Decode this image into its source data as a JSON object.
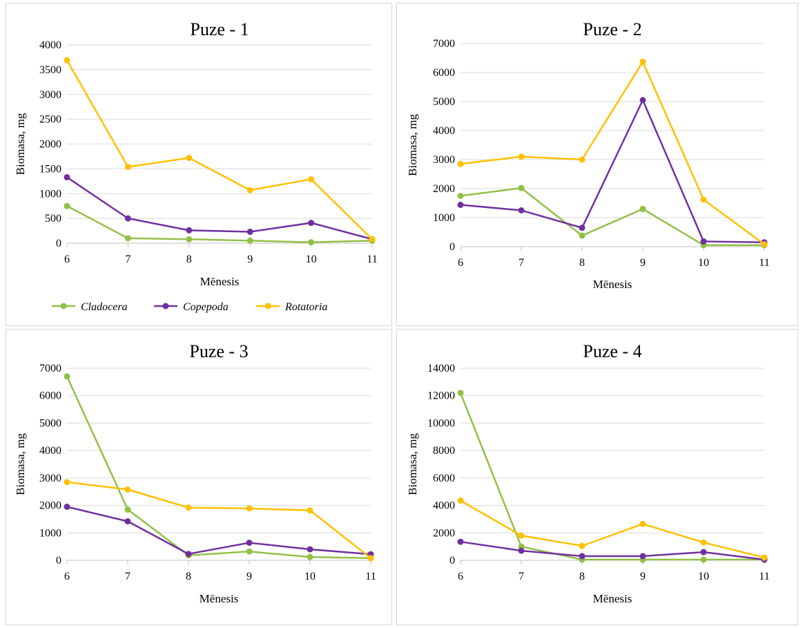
{
  "colors": {
    "cladocera": "#92c047",
    "copepoda": "#7030a0",
    "rotatoria": "#ffc000",
    "grid": "#d9d9d9",
    "axis": "#bfbfbf"
  },
  "legend": {
    "placement": "bottom",
    "items": [
      "Cladocera",
      "Copepoda",
      "Rotatoria"
    ]
  },
  "chart_data": [
    {
      "type": "line",
      "title": "Puze - 1",
      "xlabel": "Mēnesis",
      "ylabel": "Biomasa, mg",
      "x": [
        6,
        7,
        8,
        9,
        10,
        11
      ],
      "ylim": [
        0,
        4000
      ],
      "yticks": [
        0,
        500,
        1000,
        1500,
        2000,
        2500,
        3000,
        3500,
        4000
      ],
      "grid": true,
      "series": [
        {
          "name": "Cladocera",
          "values": [
            750,
            100,
            80,
            50,
            20,
            50
          ]
        },
        {
          "name": "Copepoda",
          "values": [
            1330,
            500,
            260,
            230,
            410,
            80
          ]
        },
        {
          "name": "Rotatoria",
          "values": [
            3690,
            1540,
            1720,
            1070,
            1290,
            80
          ]
        }
      ]
    },
    {
      "type": "line",
      "title": "Puze - 2",
      "xlabel": "Mēnesis",
      "ylabel": "Biomasa, mg",
      "x": [
        6,
        7,
        8,
        9,
        10,
        11
      ],
      "ylim": [
        0,
        7000
      ],
      "yticks": [
        0,
        1000,
        2000,
        3000,
        4000,
        5000,
        6000,
        7000
      ],
      "grid": true,
      "series": [
        {
          "name": "Cladocera",
          "values": [
            1750,
            2020,
            380,
            1300,
            50,
            50
          ]
        },
        {
          "name": "Copepoda",
          "values": [
            1440,
            1250,
            650,
            5050,
            180,
            150
          ]
        },
        {
          "name": "Rotatoria",
          "values": [
            2850,
            3100,
            3000,
            6370,
            1620,
            80
          ]
        }
      ]
    },
    {
      "type": "line",
      "title": "Puze - 3",
      "xlabel": "Mēnesis",
      "ylabel": "Biomasa, mg",
      "x": [
        6,
        7,
        8,
        9,
        10,
        11
      ],
      "ylim": [
        0,
        7000
      ],
      "yticks": [
        0,
        1000,
        2000,
        3000,
        4000,
        5000,
        6000,
        7000
      ],
      "grid": true,
      "series": [
        {
          "name": "Cladocera",
          "values": [
            6700,
            1850,
            180,
            320,
            120,
            80
          ]
        },
        {
          "name": "Copepoda",
          "values": [
            1950,
            1420,
            230,
            640,
            400,
            220
          ]
        },
        {
          "name": "Rotatoria",
          "values": [
            2850,
            2580,
            1920,
            1890,
            1820,
            80
          ]
        }
      ]
    },
    {
      "type": "line",
      "title": "Puze - 4",
      "xlabel": "Mēnesis",
      "ylabel": "Biomasa, mg",
      "x": [
        6,
        7,
        8,
        9,
        10,
        11
      ],
      "ylim": [
        0,
        14000
      ],
      "yticks": [
        0,
        2000,
        4000,
        6000,
        8000,
        10000,
        12000,
        14000
      ],
      "grid": true,
      "series": [
        {
          "name": "Cladocera",
          "values": [
            12200,
            1000,
            50,
            50,
            50,
            50
          ]
        },
        {
          "name": "Copepoda",
          "values": [
            1350,
            700,
            300,
            300,
            600,
            50
          ]
        },
        {
          "name": "Rotatoria",
          "values": [
            4350,
            1800,
            1050,
            2650,
            1300,
            200
          ]
        }
      ]
    }
  ]
}
